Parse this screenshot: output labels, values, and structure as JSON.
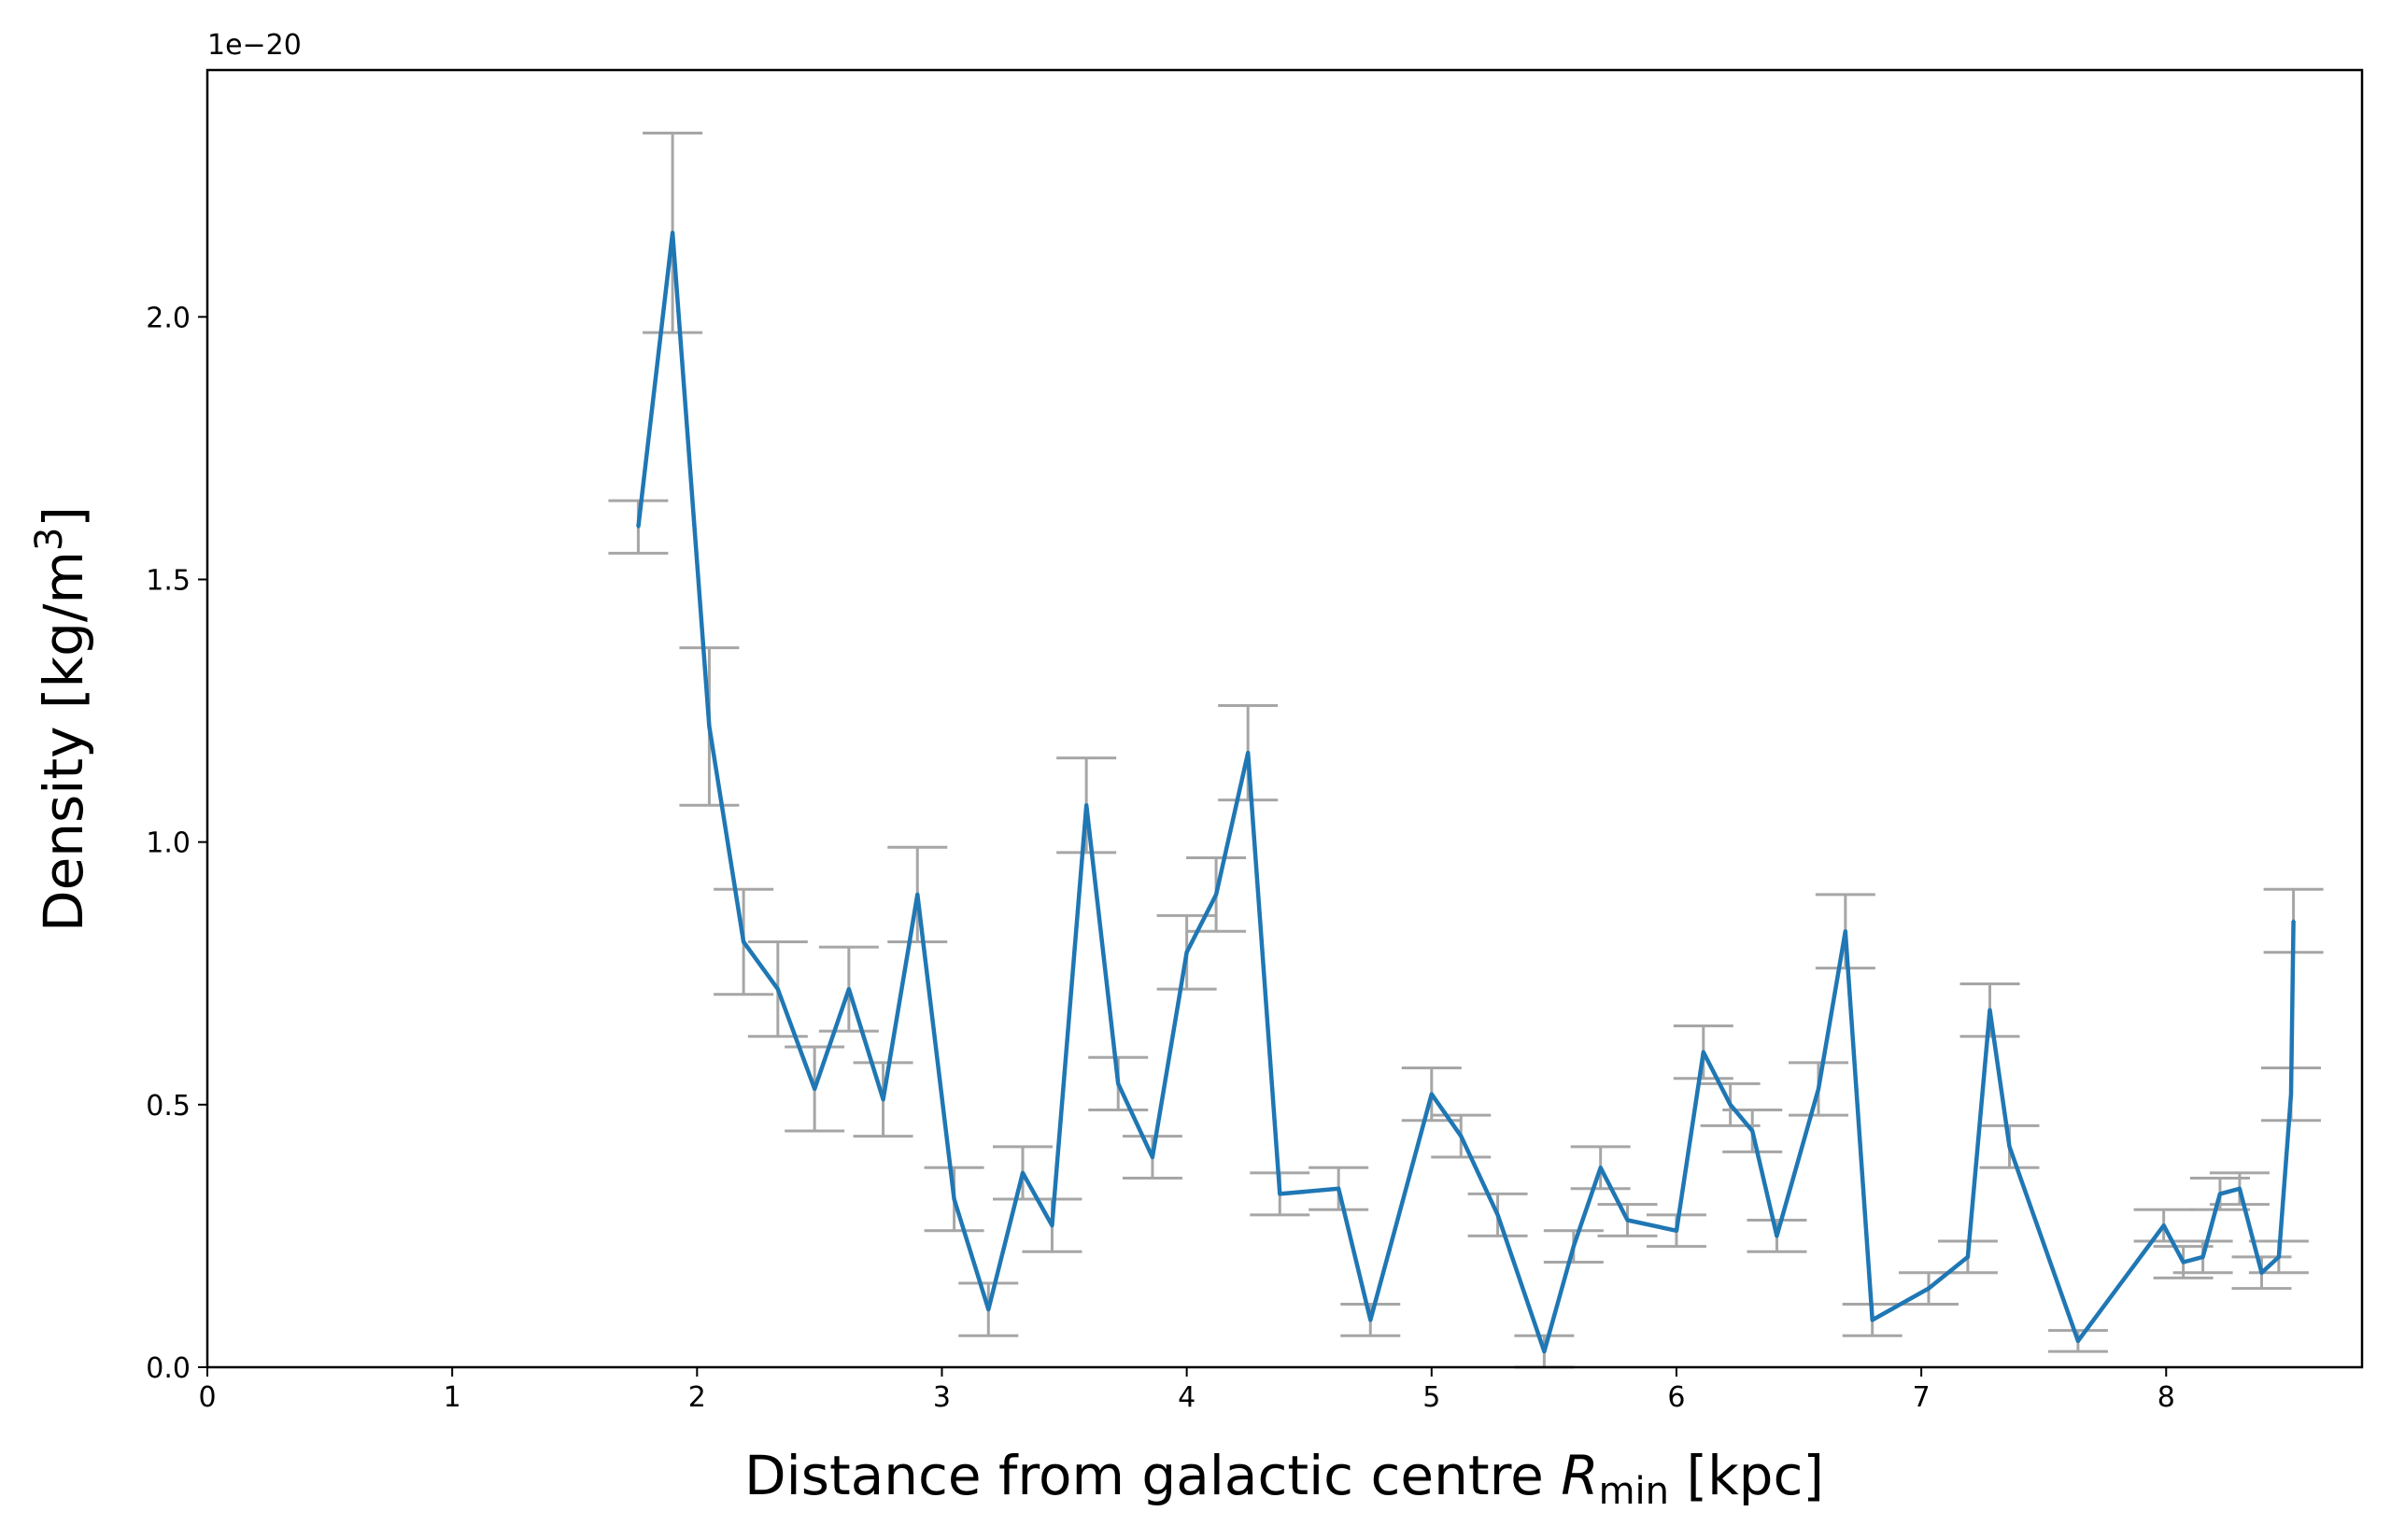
{
  "chart_data": {
    "type": "line",
    "title": "",
    "xlabel": "Distance from galactic centre R_min [kpc]",
    "xlabel_parts": {
      "prefix": "Distance from galactic centre ",
      "symbol": "R",
      "subscript": "min",
      "suffix": " [kpc]"
    },
    "ylabel": "Density [kg/m^3]",
    "ylabel_parts": {
      "prefix": "Density [kg/m",
      "superscript": "3",
      "suffix": "]"
    },
    "y_offset_label": "1e−20",
    "xlim": [
      0,
      8.8
    ],
    "ylim": [
      0,
      2.47
    ],
    "xticks": [
      0,
      1,
      2,
      3,
      4,
      5,
      6,
      7,
      8
    ],
    "xtick_labels": [
      "0",
      "1",
      "2",
      "3",
      "4",
      "5",
      "6",
      "7",
      "8"
    ],
    "yticks": [
      0,
      0.5,
      1.0,
      1.5,
      2.0
    ],
    "ytick_labels": [
      "0.0",
      "0.5",
      "1.0",
      "1.5",
      "2.0"
    ],
    "grid": false,
    "line_color": "#1f77b4",
    "errorbar_color": "#a6a6a6",
    "series": [
      {
        "x": [
          1.76,
          1.9,
          2.05,
          2.19,
          2.33,
          2.48,
          2.62,
          2.76,
          2.9,
          3.05,
          3.19,
          3.33,
          3.45,
          3.59,
          3.72,
          3.86,
          4.0,
          4.12,
          4.25,
          4.38,
          4.62,
          4.75,
          5.0,
          5.12,
          5.27,
          5.46,
          5.58,
          5.69,
          5.8,
          6.0,
          6.11,
          6.22,
          6.31,
          6.41,
          6.58,
          6.69,
          6.8,
          7.03,
          7.19,
          7.28,
          7.36,
          7.64,
          7.99,
          8.07,
          8.15,
          8.22,
          8.3,
          8.39,
          8.46,
          8.51,
          8.52
        ],
        "y": [
          1.6,
          2.16,
          1.22,
          0.81,
          0.72,
          0.53,
          0.72,
          0.51,
          0.9,
          0.32,
          0.11,
          0.37,
          0.27,
          1.07,
          0.54,
          0.4,
          0.79,
          0.9,
          1.17,
          0.33,
          0.34,
          0.09,
          0.52,
          0.44,
          0.29,
          0.03,
          0.23,
          0.38,
          0.28,
          0.26,
          0.6,
          0.5,
          0.45,
          0.25,
          0.53,
          0.83,
          0.09,
          0.15,
          0.21,
          0.68,
          0.42,
          0.05,
          0.27,
          0.2,
          0.21,
          0.33,
          0.34,
          0.18,
          0.21,
          0.52,
          0.85
        ],
        "err": [
          0.05,
          0.19,
          0.15,
          0.1,
          0.09,
          0.08,
          0.08,
          0.07,
          0.09,
          0.06,
          0.05,
          0.05,
          0.05,
          0.09,
          0.05,
          0.04,
          0.07,
          0.07,
          0.09,
          0.04,
          0.04,
          0.03,
          0.05,
          0.04,
          0.04,
          0.03,
          0.03,
          0.04,
          0.03,
          0.03,
          0.05,
          0.04,
          0.04,
          0.03,
          0.05,
          0.07,
          0.03,
          0.03,
          0.03,
          0.05,
          0.04,
          0.02,
          0.03,
          0.03,
          0.03,
          0.03,
          0.03,
          0.03,
          0.03,
          0.05,
          0.06
        ]
      }
    ]
  }
}
